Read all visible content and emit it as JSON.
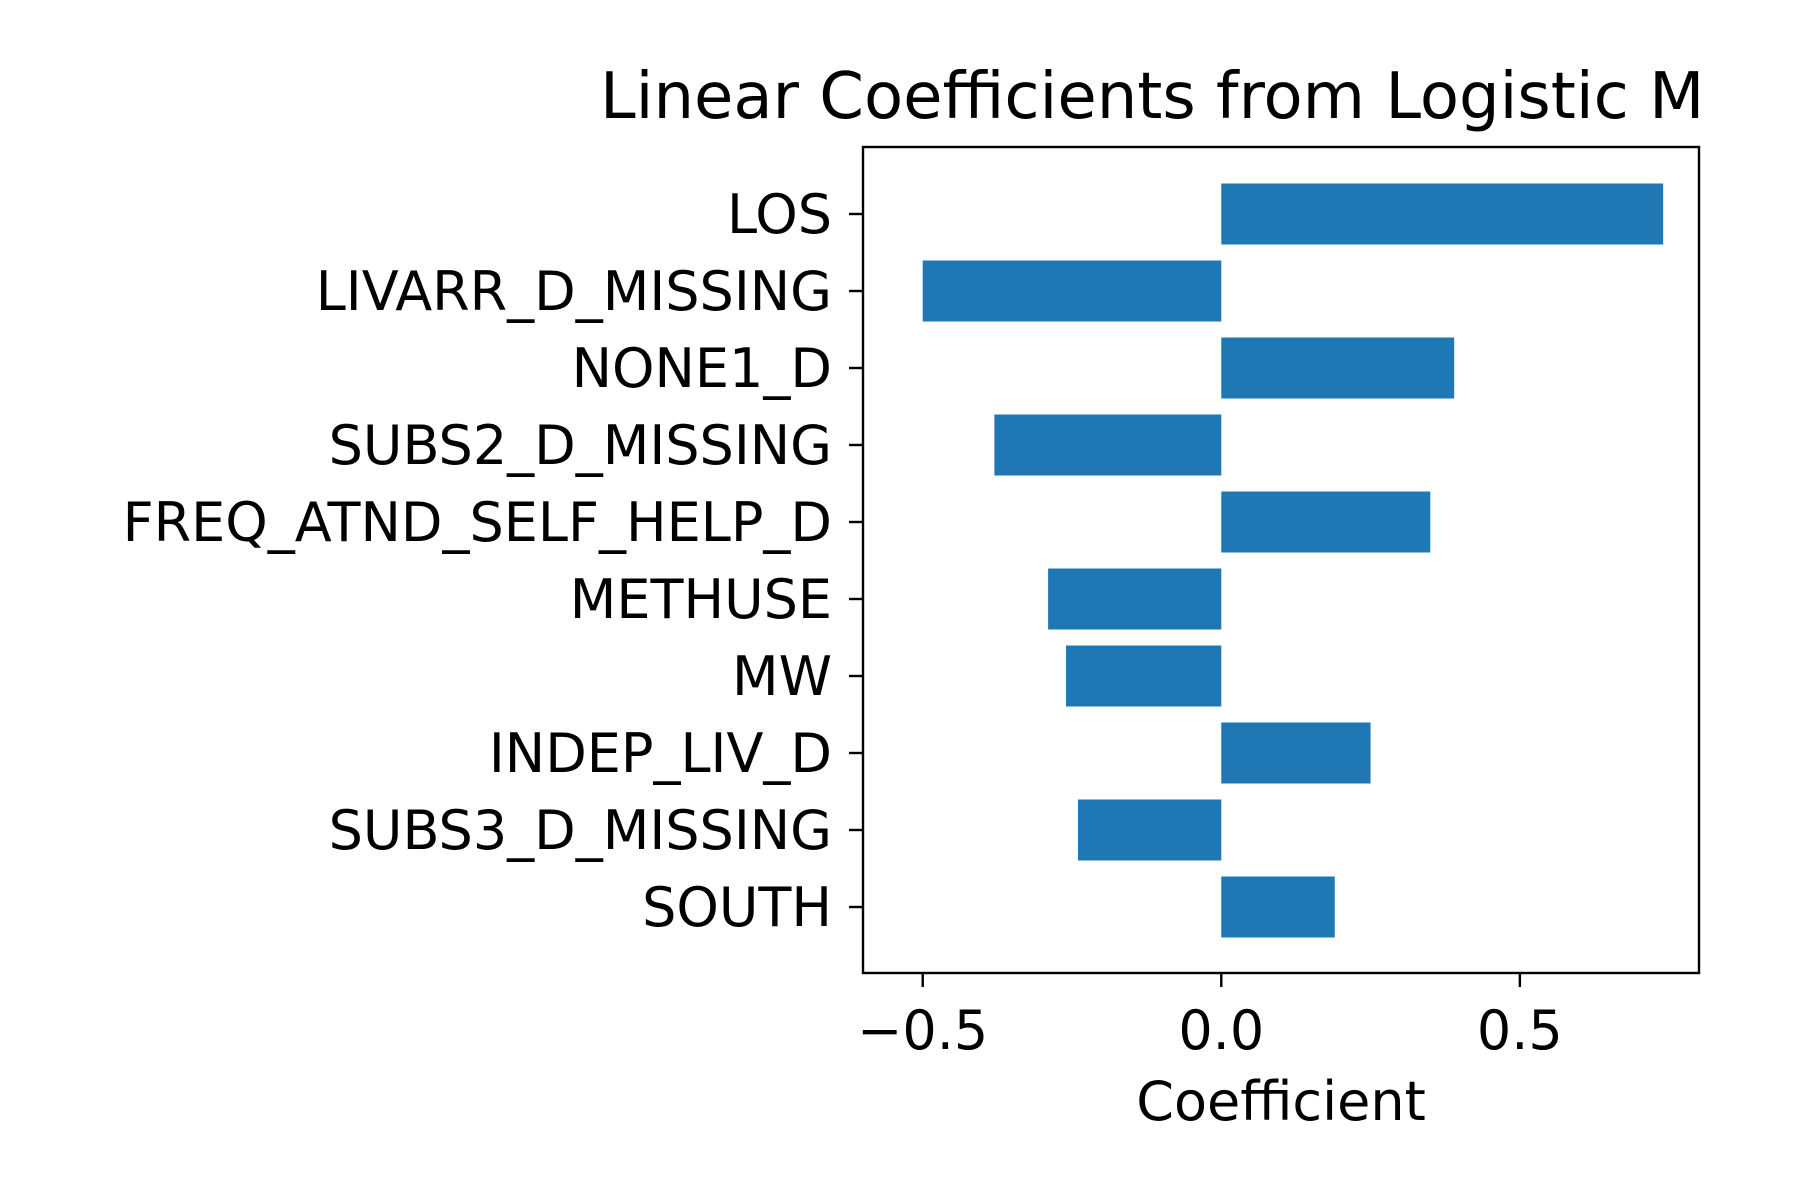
{
  "chart_data": {
    "type": "bar",
    "orientation": "horizontal",
    "title": "Linear Coefficients from Logistic M",
    "xlabel": "Coefficient",
    "ylabel": "",
    "xlim": [
      -0.6,
      0.8
    ],
    "xticks": [
      -0.5,
      0.0,
      0.5
    ],
    "xtick_labels": [
      "−0.5",
      "0.0",
      "0.5"
    ],
    "categories": [
      "LOS",
      "LIVARR_D_MISSING",
      "NONE1_D",
      "SUBS2_D_MISSING",
      "FREQ_ATND_SELF_HELP_D",
      "METHUSE",
      "MW",
      "INDEP_LIV_D",
      "SUBS3_D_MISSING",
      "SOUTH"
    ],
    "values": [
      0.74,
      -0.5,
      0.39,
      -0.38,
      0.35,
      -0.29,
      -0.26,
      0.25,
      -0.24,
      0.19
    ],
    "bar_color": "#1f77b4",
    "grid": false,
    "legend": "none"
  }
}
